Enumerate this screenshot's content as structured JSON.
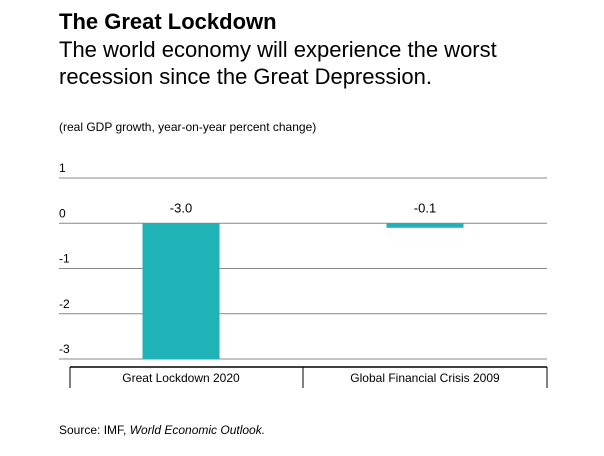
{
  "header": {
    "title": "The Great Lockdown",
    "subtitle": "The world economy will experience the worst recession since the Great Depression."
  },
  "note": "(real GDP growth, year-on-year percent change)",
  "source": {
    "prefix": "Source: IMF, ",
    "publication": "World Economic Outlook."
  },
  "colors": {
    "bar": "#1fb3b8",
    "grid": "#888888",
    "text": "#000000"
  },
  "chart_data": {
    "type": "bar",
    "title": "The Great Lockdown",
    "categories": [
      "Great Lockdown 2020",
      "Global Financial Crisis 2009"
    ],
    "values": [
      -3.0,
      -0.1
    ],
    "value_labels": [
      "-3.0",
      "-0.1"
    ],
    "ylabel": "(real GDP growth, year-on-year percent change)",
    "xlabel": "",
    "ylim": [
      -3,
      1
    ],
    "yticks": [
      1,
      0,
      -1,
      -2,
      -3
    ],
    "grid": true,
    "legend": "none"
  }
}
